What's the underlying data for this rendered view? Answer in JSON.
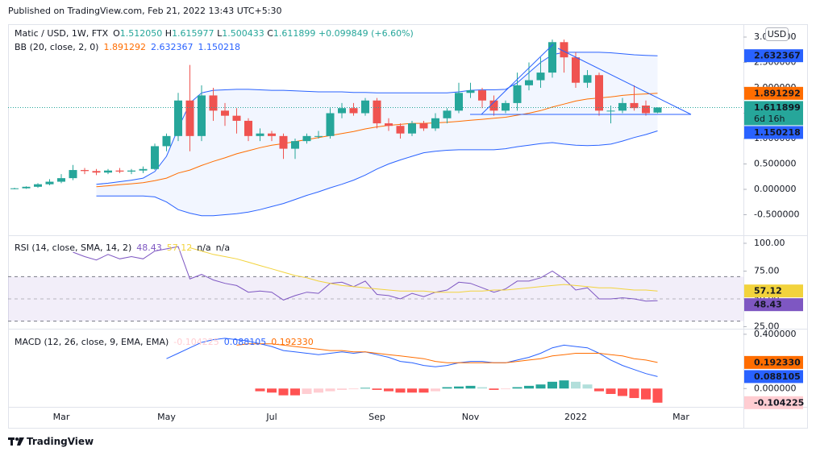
{
  "header": "Published on TradingView.com, Feb 21, 2022 13:43 UTC+5:30",
  "footer": "TradingView",
  "chart_data": [
    {
      "type": "candlestick",
      "title": "Matic / USD, 1W, FTX",
      "currency": "USD",
      "legend": {
        "keys": [
          "O",
          "H",
          "L",
          "C"
        ],
        "values": [
          "1.512050",
          "1.615977",
          "1.500433",
          "1.611899"
        ],
        "change": "+0.099849 (+6.60%)"
      },
      "indicator": "BB (20, close, 2, 0)",
      "countdown": "6d 16h",
      "up_color": "#26a69a",
      "down_color": "#ef5350",
      "band_fill": "rgba(41,98,255,0.06)",
      "categories": [
        null,
        null,
        null,
        null,
        "Mar",
        null,
        null,
        null,
        null,
        null,
        null,
        null,
        null,
        "May",
        null,
        null,
        null,
        null,
        null,
        null,
        null,
        null,
        "Jul",
        null,
        null,
        null,
        null,
        null,
        null,
        null,
        null,
        "Sep",
        null,
        null,
        null,
        null,
        null,
        null,
        null,
        "Nov",
        null,
        null,
        null,
        null,
        null,
        null,
        null,
        null,
        "2022",
        null,
        null,
        null,
        null,
        null,
        null,
        null,
        null,
        "Mar"
      ],
      "open": [
        0.01,
        0.02,
        0.05,
        0.1,
        0.15,
        0.22,
        0.38,
        0.36,
        0.33,
        0.37,
        0.35,
        0.37,
        0.4,
        0.85,
        1.05,
        1.75,
        1.05,
        1.85,
        1.55,
        1.45,
        1.35,
        1.05,
        1.1,
        1.05,
        0.8,
        0.95,
        1.05,
        1.05,
        1.5,
        1.6,
        1.5,
        1.75,
        1.3,
        1.25,
        1.1,
        1.3,
        1.2,
        1.4,
        1.55,
        1.9,
        1.95,
        1.75,
        1.55,
        1.7,
        2.05,
        2.15,
        2.3,
        2.9,
        2.6,
        2.1,
        2.25,
        1.55,
        1.55,
        1.7,
        1.65,
        1.51205,
        null,
        null
      ],
      "high": [
        0.03,
        0.06,
        0.12,
        0.2,
        0.3,
        0.48,
        0.42,
        0.4,
        0.4,
        0.42,
        0.4,
        0.45,
        0.9,
        1.1,
        1.9,
        2.45,
        2.05,
        2.0,
        1.7,
        1.6,
        1.4,
        1.2,
        1.15,
        1.1,
        1.0,
        1.1,
        1.15,
        1.6,
        1.7,
        1.7,
        1.8,
        1.8,
        1.4,
        1.3,
        1.35,
        1.35,
        1.5,
        1.6,
        2.1,
        2.1,
        2.0,
        1.85,
        1.75,
        2.3,
        2.5,
        2.6,
        2.95,
        2.95,
        2.7,
        2.35,
        2.3,
        1.65,
        1.8,
        2.05,
        1.75,
        1.615977,
        null,
        null
      ],
      "low": [
        0,
        0.01,
        0.03,
        0.08,
        0.12,
        0.18,
        0.3,
        0.28,
        0.3,
        0.32,
        0.3,
        0.32,
        0.38,
        0.75,
        0.95,
        0.75,
        0.95,
        1.35,
        1.25,
        1.1,
        0.95,
        0.95,
        0.95,
        0.6,
        0.6,
        0.9,
        1.0,
        1.0,
        1.4,
        1.45,
        1.45,
        1.2,
        1.15,
        1.0,
        1.05,
        1.15,
        1.15,
        1.3,
        1.5,
        1.8,
        1.6,
        1.45,
        1.5,
        1.55,
        1.95,
        2.0,
        2.2,
        2.3,
        2.0,
        2.0,
        1.45,
        1.3,
        1.5,
        1.55,
        1.45,
        1.500433,
        null,
        null
      ],
      "close": [
        0.02,
        0.05,
        0.1,
        0.15,
        0.22,
        0.38,
        0.36,
        0.33,
        0.37,
        0.35,
        0.37,
        0.4,
        0.85,
        1.05,
        1.75,
        1.05,
        1.85,
        1.55,
        1.45,
        1.35,
        1.05,
        1.1,
        1.05,
        0.8,
        0.95,
        1.05,
        1.05,
        1.5,
        1.6,
        1.5,
        1.75,
        1.3,
        1.25,
        1.1,
        1.3,
        1.2,
        1.4,
        1.55,
        1.9,
        1.95,
        1.75,
        1.55,
        1.7,
        2.05,
        2.15,
        2.3,
        2.9,
        2.6,
        2.1,
        2.25,
        1.55,
        1.55,
        1.7,
        1.6,
        1.5,
        1.611899,
        null,
        null
      ],
      "series": [
        {
          "color": "#ff6d00",
          "values": [
            null,
            null,
            null,
            null,
            null,
            null,
            null,
            0.05,
            0.07,
            0.09,
            0.11,
            0.13,
            0.17,
            0.22,
            0.32,
            0.38,
            0.47,
            0.55,
            0.62,
            0.7,
            0.76,
            0.82,
            0.87,
            0.9,
            0.94,
            0.98,
            1.02,
            1.06,
            1.1,
            1.14,
            1.19,
            1.23,
            1.26,
            1.28,
            1.3,
            1.3,
            1.31,
            1.32,
            1.34,
            1.36,
            1.38,
            1.4,
            1.42,
            1.46,
            1.5,
            1.55,
            1.62,
            1.68,
            1.74,
            1.78,
            1.8,
            1.82,
            1.85,
            1.87,
            1.88,
            1.891292,
            null,
            null
          ]
        },
        {
          "color": "#2962ff",
          "values": [
            null,
            null,
            null,
            null,
            null,
            null,
            null,
            0.1,
            0.12,
            0.15,
            0.18,
            0.22,
            0.35,
            0.65,
            1.2,
            1.7,
            1.9,
            1.95,
            1.96,
            1.97,
            1.97,
            1.96,
            1.95,
            1.95,
            1.94,
            1.93,
            1.92,
            1.92,
            1.92,
            1.91,
            1.91,
            1.9,
            1.9,
            1.9,
            1.9,
            1.9,
            1.9,
            1.9,
            1.92,
            1.95,
            1.96,
            1.96,
            1.97,
            2.1,
            2.3,
            2.5,
            2.65,
            2.7,
            2.7,
            2.7,
            2.7,
            2.69,
            2.67,
            2.65,
            2.64,
            2.632367,
            null,
            null
          ]
        },
        {
          "color": "#2962ff",
          "values": [
            null,
            null,
            null,
            null,
            null,
            null,
            null,
            -0.13,
            -0.13,
            -0.13,
            -0.13,
            -0.13,
            -0.15,
            -0.25,
            -0.4,
            -0.47,
            -0.52,
            -0.52,
            -0.5,
            -0.48,
            -0.45,
            -0.4,
            -0.34,
            -0.28,
            -0.2,
            -0.12,
            -0.05,
            0.03,
            0.1,
            0.18,
            0.28,
            0.4,
            0.5,
            0.58,
            0.65,
            0.72,
            0.75,
            0.77,
            0.78,
            0.78,
            0.78,
            0.78,
            0.8,
            0.84,
            0.87,
            0.9,
            0.92,
            0.89,
            0.87,
            0.86,
            0.87,
            0.89,
            0.95,
            1.02,
            1.08,
            1.150218,
            null,
            null
          ]
        }
      ],
      "ylim": [
        -0.905,
        3.254
      ],
      "yticks": [
        {
          "value": -0.5,
          "label": "-0.500000"
        },
        {
          "value": 0,
          "label": "0.000000"
        },
        {
          "value": 0.5,
          "label": "0.500000"
        },
        {
          "value": 1,
          "label": "1.000000"
        },
        {
          "value": 1.5,
          "label": "1.500000"
        },
        {
          "value": 2,
          "label": "2.000000"
        },
        {
          "value": 2.5,
          "label": "2.500000"
        },
        {
          "value": 3,
          "label": "3.000000"
        }
      ],
      "grid": false
    },
    {
      "type": "line",
      "title": "RSI (14, close, SMA, 14, 2)",
      "extra_labels": [
        "n/a",
        "n/a"
      ],
      "band": [
        30,
        70
      ],
      "midline": 50,
      "band_fill": "rgba(126,87,194,0.1)",
      "series": [
        {
          "color": "#7e57c2",
          "values": [
            null,
            null,
            null,
            null,
            null,
            92,
            88,
            85,
            90,
            86,
            88,
            86,
            93,
            95,
            97,
            68,
            72,
            67,
            64,
            62,
            56,
            57,
            56,
            49,
            53,
            56,
            55,
            64,
            65,
            61,
            66,
            54,
            53,
            50,
            55,
            52,
            56,
            58,
            65,
            64,
            60,
            56,
            59,
            66,
            66,
            69,
            75,
            68,
            58,
            60,
            50,
            50,
            51,
            50,
            48,
            48.43,
            null,
            null
          ]
        },
        {
          "color": "#f2d33c",
          "values": [
            null,
            null,
            null,
            null,
            null,
            null,
            null,
            null,
            null,
            null,
            null,
            null,
            null,
            null,
            null,
            96,
            93,
            90,
            88,
            86,
            83,
            80,
            77,
            74,
            71,
            69,
            66,
            64,
            62,
            61,
            60,
            59,
            58,
            57,
            57,
            57,
            56,
            56,
            56,
            57,
            57,
            58,
            58,
            59,
            60,
            61,
            62,
            63,
            62,
            61,
            60,
            60,
            59,
            58,
            58,
            57.12,
            null,
            null
          ]
        }
      ],
      "ylim": [
        23.2,
        106.5
      ],
      "yticks": [
        {
          "value": 25,
          "label": "25.00"
        },
        {
          "value": 50,
          "label": "50.00"
        },
        {
          "value": 75,
          "label": "75.00"
        },
        {
          "value": 100,
          "label": "100.00"
        }
      ],
      "grid": false
    },
    {
      "type": "line",
      "title": "MACD (12, 26, close, 9, EMA, EMA)",
      "series": [
        {
          "color": "#2962ff",
          "values": [
            null,
            null,
            null,
            null,
            null,
            null,
            null,
            null,
            null,
            null,
            null,
            null,
            null,
            0.22,
            0.26,
            0.3,
            0.34,
            0.36,
            0.37,
            0.36,
            0.35,
            0.33,
            0.31,
            0.28,
            0.27,
            0.26,
            0.25,
            0.26,
            0.27,
            0.26,
            0.27,
            0.25,
            0.23,
            0.2,
            0.19,
            0.17,
            0.16,
            0.17,
            0.19,
            0.2,
            0.2,
            0.19,
            0.19,
            0.21,
            0.23,
            0.26,
            0.3,
            0.32,
            0.31,
            0.3,
            0.26,
            0.21,
            0.17,
            0.14,
            0.11,
            0.088105,
            null,
            null
          ]
        },
        {
          "color": "#ff6d00",
          "values": [
            null,
            null,
            null,
            null,
            null,
            null,
            null,
            null,
            null,
            null,
            null,
            null,
            null,
            null,
            null,
            null,
            null,
            null,
            null,
            0.32,
            0.33,
            0.33,
            0.33,
            0.32,
            0.31,
            0.3,
            0.29,
            0.28,
            0.28,
            0.27,
            0.27,
            0.26,
            0.25,
            0.24,
            0.23,
            0.22,
            0.2,
            0.19,
            0.19,
            0.19,
            0.19,
            0.19,
            0.19,
            0.2,
            0.21,
            0.22,
            0.24,
            0.25,
            0.26,
            0.26,
            0.26,
            0.25,
            0.24,
            0.22,
            0.21,
            0.19233,
            null,
            null
          ],
          "value_labels": [
            null,
            null,
            null,
            null,
            null,
            null,
            null,
            null,
            null,
            null,
            null,
            null,
            null,
            null,
            null,
            null,
            null,
            null,
            null,
            null,
            null,
            null,
            null,
            null,
            null,
            null,
            null,
            null,
            null,
            null,
            null,
            null,
            null,
            null,
            null,
            null,
            null,
            null,
            null,
            null,
            null,
            null,
            null,
            null,
            null,
            null,
            null,
            null,
            null,
            null,
            null,
            null,
            null,
            null,
            null,
            "0.192330",
            null,
            null
          ]
        }
      ],
      "histogram": {
        "values": [
          null,
          null,
          null,
          null,
          null,
          null,
          null,
          null,
          null,
          null,
          null,
          null,
          null,
          null,
          null,
          null,
          null,
          null,
          null,
          null,
          null,
          -0.02,
          -0.03,
          -0.05,
          -0.05,
          -0.04,
          -0.03,
          -0.02,
          -0.01,
          -0.005,
          0.005,
          -0.01,
          -0.02,
          -0.03,
          -0.03,
          -0.03,
          -0.02,
          0.01,
          0.015,
          0.02,
          0.01,
          -0.01,
          -0.005,
          0.01,
          0.02,
          0.03,
          0.05,
          0.06,
          0.05,
          0.03,
          -0.02,
          -0.04,
          -0.055,
          -0.07,
          -0.08,
          -0.104225,
          null,
          null
        ],
        "colors": {
          "grow_above": "#26a69a",
          "fall_above": "#b2dfdb",
          "grow_below": "#ffcdd2",
          "fall_below": "#ff5252"
        }
      },
      "ylim": [
        -0.135,
        0.435
      ],
      "yticks": [
        {
          "value": 0,
          "label": "0.000000"
        },
        {
          "value": 0.4,
          "label": "0.400000"
        }
      ],
      "grid": false
    }
  ]
}
